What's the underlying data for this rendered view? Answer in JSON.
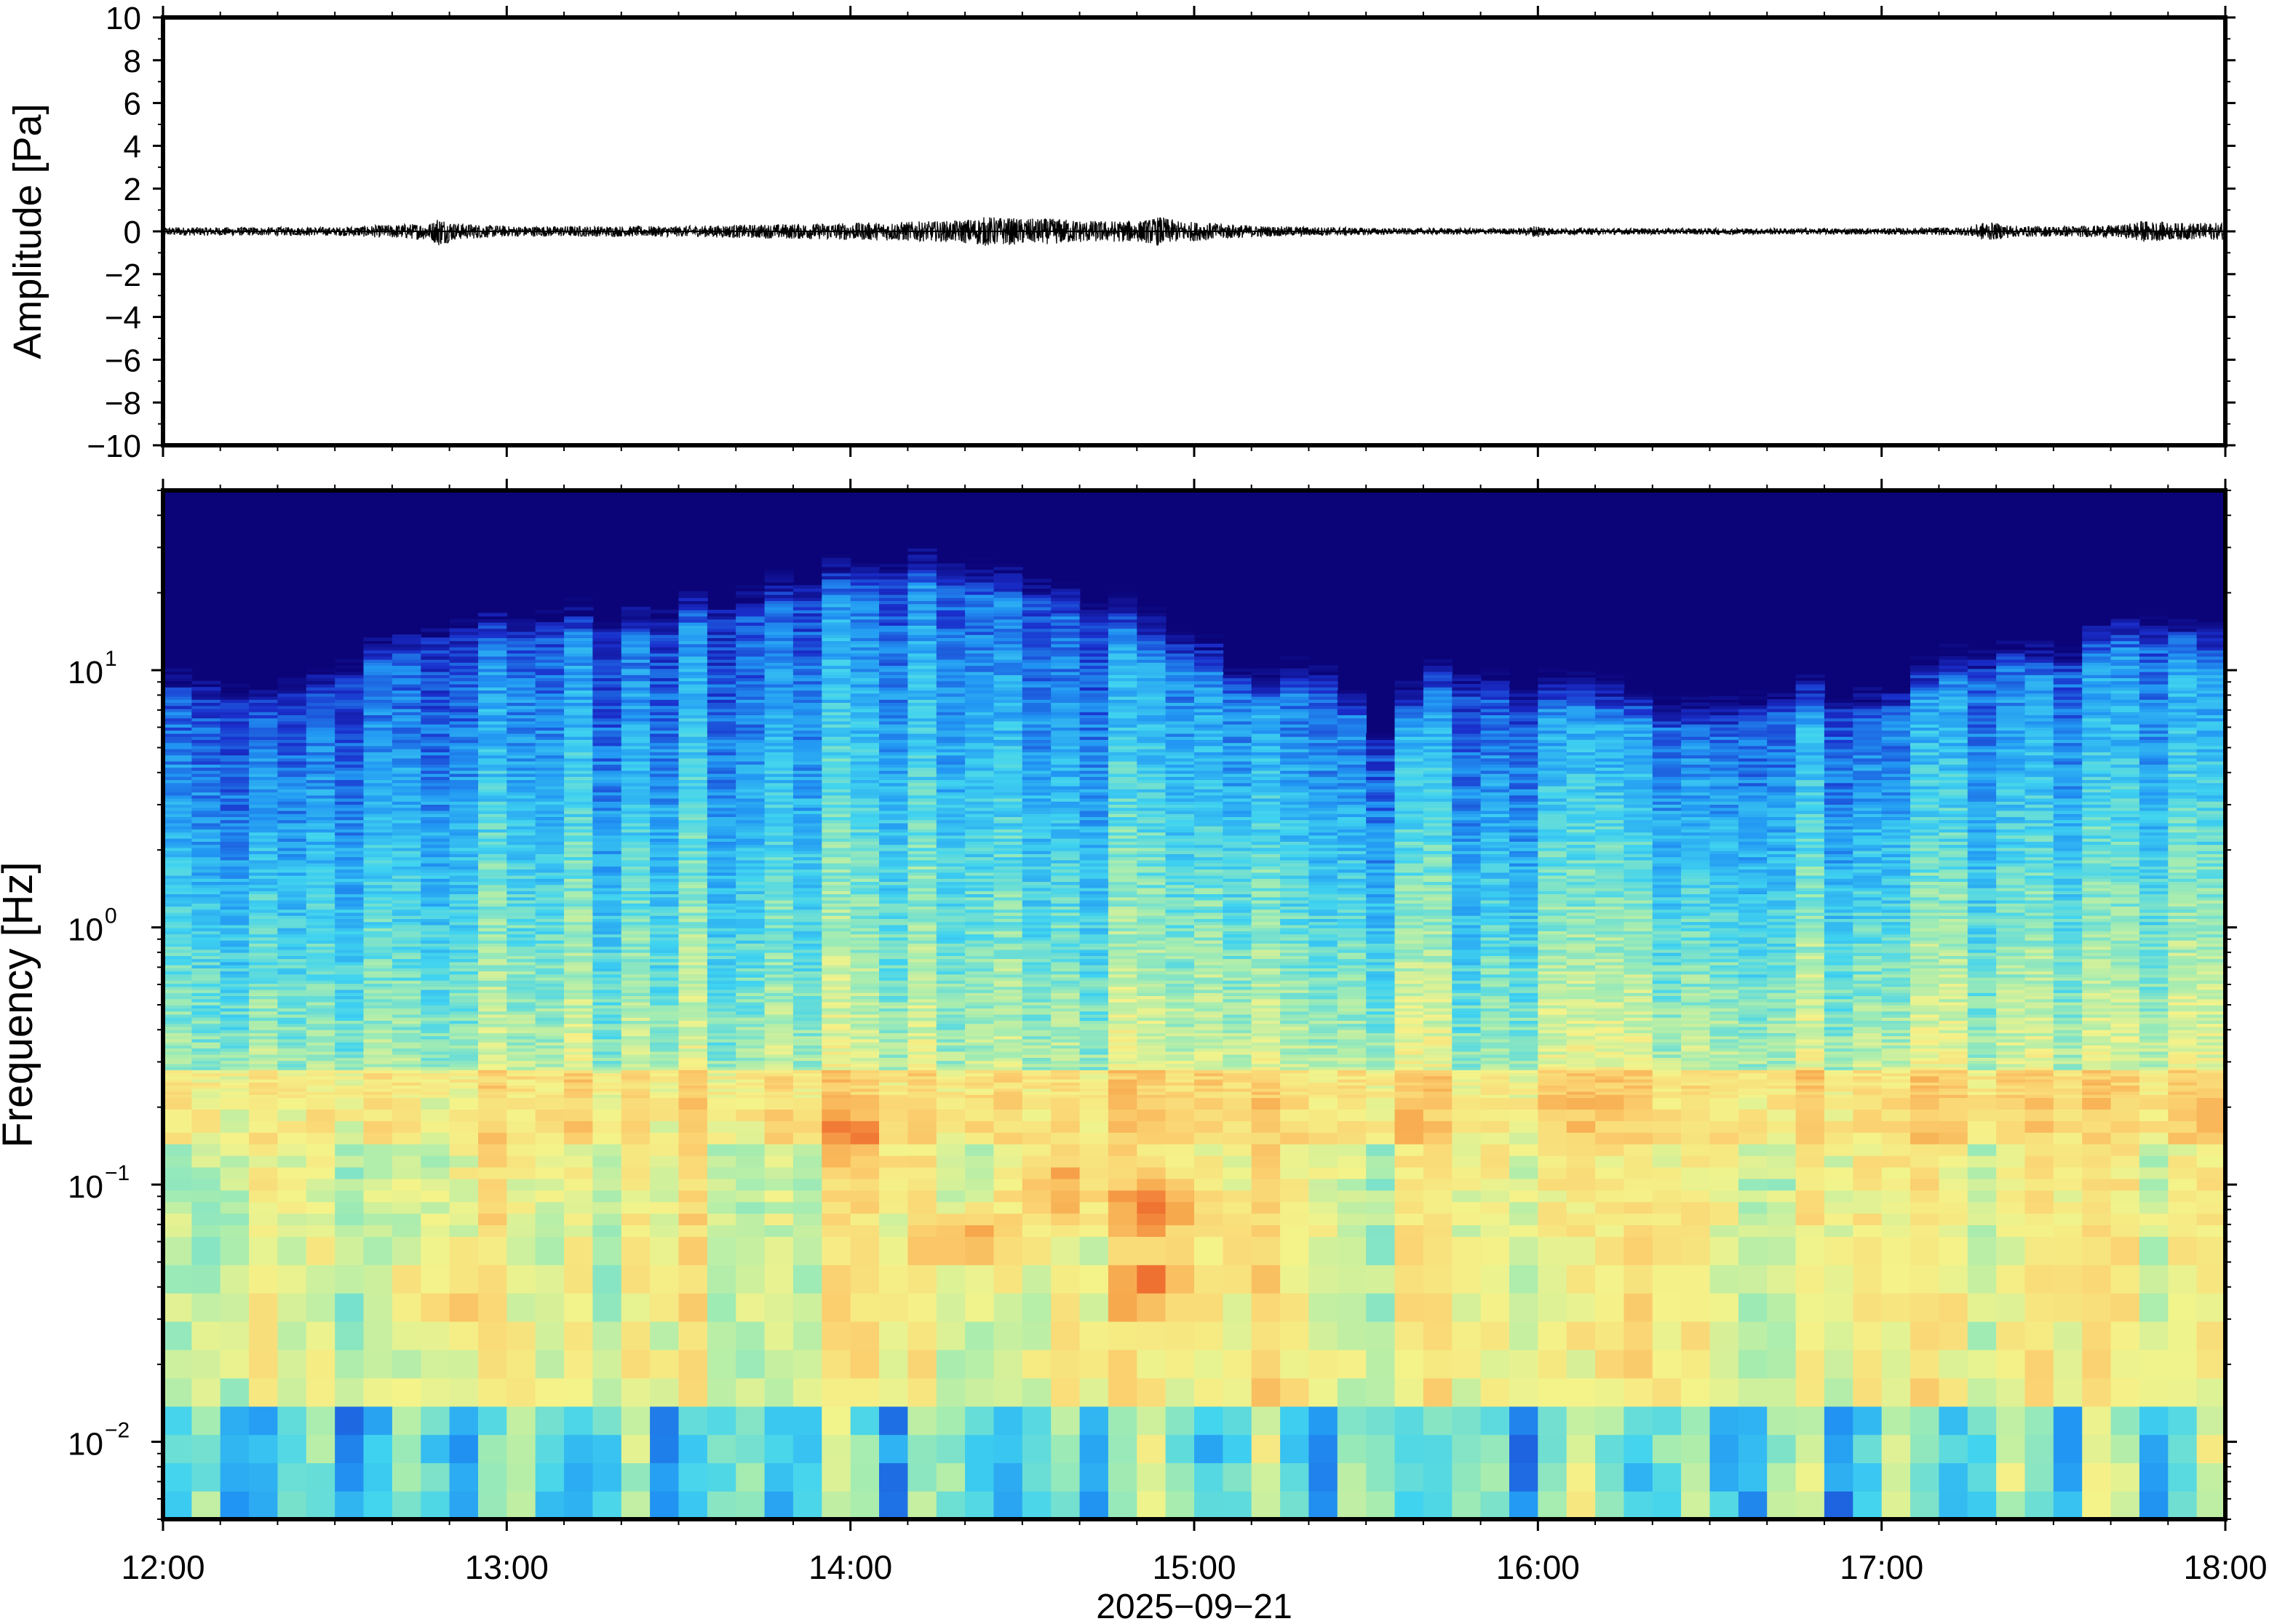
{
  "chart_data": [
    {
      "type": "line",
      "panel": "waveform",
      "ylabel": "Amplitude [Pa]",
      "ylim": [
        -10,
        10
      ],
      "y_ticks": [
        10,
        8,
        6,
        4,
        2,
        0,
        -2,
        -4,
        -6,
        -8,
        -10
      ],
      "y_tick_labels": [
        "10",
        "8",
        "6",
        "4",
        "2",
        "0",
        "−2",
        "−4",
        "−6",
        "−8",
        "−10"
      ],
      "x_range": [
        "12:00",
        "18:00"
      ],
      "grid": false,
      "envelope": {
        "description": "time (hours after 12:00) vs peak absolute amplitude in Pa",
        "t_hours": [
          0.0,
          0.5,
          0.78,
          0.8,
          0.85,
          1.0,
          1.5,
          1.8,
          2.0,
          2.3,
          2.4,
          2.5,
          2.6,
          2.7,
          2.85,
          2.9,
          2.95,
          3.2,
          3.6,
          3.95,
          4.0,
          4.05,
          4.5,
          5.0,
          5.25,
          5.3,
          5.4,
          5.5,
          5.7,
          5.75,
          5.85,
          6.0
        ],
        "peak_pa": [
          0.2,
          0.2,
          0.4,
          0.7,
          0.4,
          0.25,
          0.25,
          0.35,
          0.4,
          0.5,
          0.7,
          0.6,
          0.6,
          0.5,
          0.5,
          0.7,
          0.5,
          0.25,
          0.15,
          0.15,
          0.3,
          0.15,
          0.15,
          0.15,
          0.2,
          0.45,
          0.25,
          0.25,
          0.3,
          0.5,
          0.4,
          0.4
        ]
      }
    },
    {
      "type": "heatmap",
      "panel": "spectrogram",
      "ylabel": "Frequency [Hz]",
      "yscale": "log",
      "ylim": [
        0.005,
        50
      ],
      "y_tick_labels": [
        {
          "value": 10,
          "base": "10",
          "exp": "1"
        },
        {
          "value": 1,
          "base": "10",
          "exp": "0"
        },
        {
          "value": 0.1,
          "base": "10",
          "exp": "−1"
        },
        {
          "value": 0.01,
          "base": "10",
          "exp": "−2"
        }
      ],
      "x_tick_labels": [
        "12:00",
        "13:00",
        "14:00",
        "15:00",
        "16:00",
        "17:00",
        "18:00"
      ],
      "xlabel": "2025−09−21",
      "colormap": [
        "#0b0478",
        "#1a2fcc",
        "#2196f3",
        "#40d3f0",
        "#a4ecb1",
        "#f4f38a",
        "#fbd271",
        "#f7a64c",
        "#ef7030"
      ],
      "ceiling_hz": {
        "description": "upper frequency of visible energy per time column, Hz",
        "t_hours": [
          0.0,
          0.3,
          0.45,
          0.8,
          1.25,
          1.5,
          1.75,
          2.0,
          2.25,
          2.5,
          2.75,
          2.9,
          3.05,
          3.2,
          3.35,
          3.55,
          3.75,
          4.0,
          4.25,
          4.5,
          4.75,
          5.0,
          5.25,
          5.35,
          5.5,
          5.75,
          6.0
        ],
        "freq_hz": [
          14,
          12,
          14,
          22,
          23,
          25,
          30,
          35,
          38,
          33,
          25,
          20,
          17,
          12,
          16,
          8,
          15,
          12,
          11,
          10,
          12,
          11,
          16,
          17,
          16,
          22,
          18
        ]
      },
      "hot_spots": [
        {
          "t_hours": 2.35,
          "freq_hz": 0.06,
          "level": "high"
        },
        {
          "t_hours": 2.9,
          "freq_hz": 0.08,
          "level": "high"
        },
        {
          "t_hours": 2.9,
          "freq_hz": 0.04,
          "level": "high"
        },
        {
          "t_hours": 2.0,
          "freq_hz": 0.15,
          "level": "medium"
        },
        {
          "t_hours": 0.8,
          "freq_hz": 0.035,
          "level": "medium"
        },
        {
          "t_hours": 2.6,
          "freq_hz": 0.1,
          "level": "medium"
        }
      ]
    }
  ]
}
